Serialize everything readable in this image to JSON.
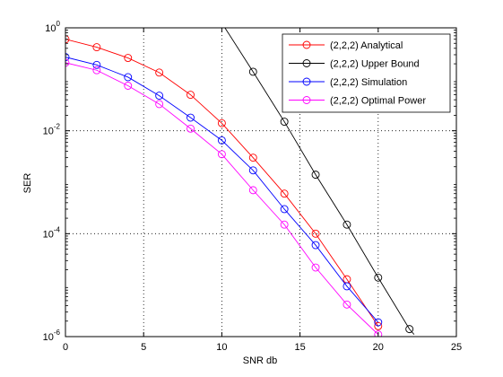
{
  "chart_data": {
    "type": "line",
    "xlabel": "SNR db",
    "ylabel": "SER",
    "xlim": [
      0,
      25
    ],
    "ylim": [
      1e-06,
      1
    ],
    "yscale": "log",
    "xticks": [
      0,
      5,
      10,
      15,
      20,
      25
    ],
    "xtick_labels": [
      "0",
      "5",
      "10",
      "15",
      "20",
      "25"
    ],
    "yticks": [
      1e-06,
      0.0001,
      0.01,
      1
    ],
    "ytick_labels": [
      {
        "base": "10",
        "exp": "-6"
      },
      {
        "base": "10",
        "exp": "-4"
      },
      {
        "base": "10",
        "exp": "-2"
      },
      {
        "base": "10",
        "exp": "0"
      }
    ],
    "grid": true,
    "legend_position": "top-right",
    "marker": "circle",
    "series": [
      {
        "name": "(2,2,2) Analytical",
        "color": "#ff0000",
        "x": [
          0,
          2,
          4,
          6,
          8,
          10,
          12,
          14,
          16,
          18,
          20
        ],
        "y": [
          0.6,
          0.42,
          0.26,
          0.135,
          0.05,
          0.014,
          0.003,
          0.0006,
          0.0001,
          1.3e-05,
          1.6e-06
        ]
      },
      {
        "name": "(2,2,2) Upper Bound",
        "color": "#000000",
        "x": [
          10.2,
          12,
          14,
          16,
          18,
          20,
          22,
          22.3
        ],
        "y": [
          1.0,
          0.14,
          0.015,
          0.0014,
          0.00015,
          1.4e-05,
          1.4e-06,
          1.1e-06
        ],
        "marker_indices": [
          1,
          2,
          3,
          4,
          5,
          6
        ]
      },
      {
        "name": "(2,2,2) Simulation",
        "color": "#0000ff",
        "x": [
          0,
          2,
          4,
          6,
          8,
          10,
          12,
          14,
          16,
          18,
          20
        ],
        "y": [
          0.27,
          0.19,
          0.11,
          0.048,
          0.018,
          0.0065,
          0.0017,
          0.0003,
          6e-05,
          9.5e-06,
          1.9e-06
        ]
      },
      {
        "name": "(2,2,2) Optimal Power",
        "color": "#ff00ff",
        "x": [
          0,
          2,
          4,
          6,
          8,
          10,
          12,
          14,
          16,
          18,
          20
        ],
        "y": [
          0.21,
          0.15,
          0.075,
          0.033,
          0.011,
          0.0035,
          0.0007,
          0.00015,
          2.2e-05,
          4.2e-06,
          1.1e-06
        ]
      }
    ]
  }
}
